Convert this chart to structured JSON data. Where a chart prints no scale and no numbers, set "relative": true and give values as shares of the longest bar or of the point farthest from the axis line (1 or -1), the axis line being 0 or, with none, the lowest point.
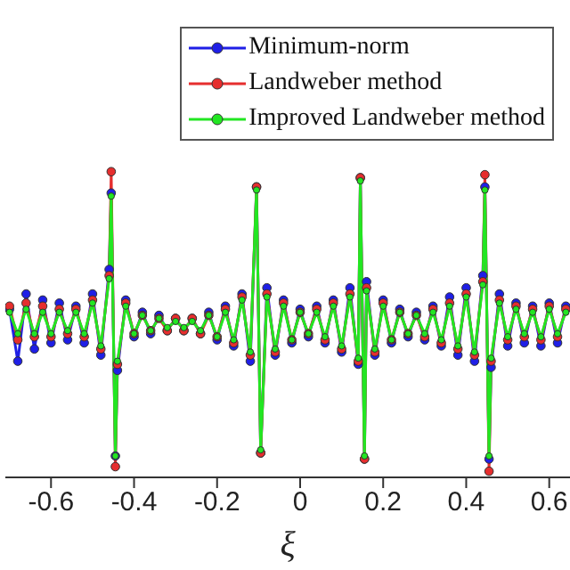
{
  "chart_data": {
    "type": "line",
    "relative": true,
    "xlabel": "ξ",
    "xlim": [
      -0.71,
      0.65
    ],
    "xticks": [
      -0.6,
      -0.4,
      -0.2,
      0,
      0.2,
      0.4,
      0.6
    ],
    "marker": "circle",
    "legend": "top right",
    "grid": false,
    "x": [
      -0.7,
      -0.68,
      -0.66,
      -0.64,
      -0.62,
      -0.6,
      -0.58,
      -0.56,
      -0.54,
      -0.52,
      -0.5,
      -0.48,
      -0.46,
      -0.455,
      -0.445,
      -0.44,
      -0.42,
      -0.4,
      -0.38,
      -0.36,
      -0.34,
      -0.32,
      -0.3,
      -0.28,
      -0.26,
      -0.24,
      -0.22,
      -0.2,
      -0.18,
      -0.16,
      -0.14,
      -0.12,
      -0.105,
      -0.095,
      -0.08,
      -0.06,
      -0.04,
      -0.02,
      0,
      0.02,
      0.04,
      0.06,
      0.08,
      0.1,
      0.12,
      0.14,
      0.145,
      0.155,
      0.16,
      0.18,
      0.2,
      0.22,
      0.24,
      0.26,
      0.28,
      0.3,
      0.32,
      0.34,
      0.36,
      0.38,
      0.4,
      0.42,
      0.44,
      0.445,
      0.455,
      0.46,
      0.48,
      0.5,
      0.52,
      0.54,
      0.56,
      0.58,
      0.6,
      0.62,
      0.64
    ],
    "series": [
      {
        "name": "Minimum-norm",
        "color": "#1f1fe6",
        "values": [
          0.55,
          0.38,
          0.6,
          0.42,
          0.58,
          0.44,
          0.57,
          0.45,
          0.56,
          0.44,
          0.6,
          0.4,
          0.68,
          0.93,
          0.07,
          0.35,
          0.58,
          0.46,
          0.54,
          0.47,
          0.53,
          0.48,
          0.52,
          0.48,
          0.52,
          0.47,
          0.54,
          0.45,
          0.56,
          0.43,
          0.6,
          0.38,
          0.95,
          0.08,
          0.62,
          0.4,
          0.58,
          0.44,
          0.55,
          0.46,
          0.56,
          0.44,
          0.58,
          0.41,
          0.62,
          0.37,
          0.98,
          0.06,
          0.64,
          0.4,
          0.58,
          0.44,
          0.55,
          0.46,
          0.54,
          0.45,
          0.56,
          0.43,
          0.59,
          0.4,
          0.62,
          0.38,
          0.66,
          0.95,
          0.06,
          0.36,
          0.6,
          0.43,
          0.57,
          0.44,
          0.56,
          0.43,
          0.57,
          0.44,
          0.56
        ]
      },
      {
        "name": "Landweber method",
        "color": "#e62e2e",
        "values": [
          0.56,
          0.45,
          0.57,
          0.46,
          0.56,
          0.46,
          0.55,
          0.47,
          0.55,
          0.46,
          0.58,
          0.42,
          0.66,
          1.0,
          0.035,
          0.37,
          0.57,
          0.47,
          0.53,
          0.48,
          0.52,
          0.48,
          0.52,
          0.48,
          0.52,
          0.47,
          0.53,
          0.46,
          0.55,
          0.44,
          0.59,
          0.4,
          0.95,
          0.08,
          0.6,
          0.41,
          0.57,
          0.45,
          0.54,
          0.47,
          0.55,
          0.45,
          0.57,
          0.42,
          0.6,
          0.38,
          0.98,
          0.06,
          0.62,
          0.41,
          0.57,
          0.45,
          0.54,
          0.47,
          0.53,
          0.46,
          0.55,
          0.44,
          0.57,
          0.42,
          0.6,
          0.4,
          0.64,
          0.99,
          0.02,
          0.38,
          0.58,
          0.45,
          0.56,
          0.46,
          0.55,
          0.45,
          0.56,
          0.46,
          0.55
        ]
      },
      {
        "name": "Improved Landweber method",
        "color": "#22e622",
        "values": [
          0.54,
          0.47,
          0.55,
          0.47,
          0.54,
          0.47,
          0.54,
          0.48,
          0.54,
          0.47,
          0.57,
          0.43,
          0.65,
          0.92,
          0.07,
          0.38,
          0.56,
          0.47,
          0.53,
          0.48,
          0.52,
          0.49,
          0.51,
          0.49,
          0.51,
          0.48,
          0.53,
          0.46,
          0.54,
          0.45,
          0.58,
          0.41,
          0.94,
          0.09,
          0.59,
          0.42,
          0.56,
          0.45,
          0.54,
          0.47,
          0.54,
          0.46,
          0.56,
          0.43,
          0.59,
          0.39,
          0.97,
          0.07,
          0.61,
          0.42,
          0.56,
          0.45,
          0.54,
          0.47,
          0.53,
          0.47,
          0.54,
          0.45,
          0.56,
          0.43,
          0.59,
          0.41,
          0.63,
          0.94,
          0.07,
          0.39,
          0.57,
          0.46,
          0.55,
          0.47,
          0.54,
          0.46,
          0.55,
          0.47,
          0.54
        ]
      }
    ]
  }
}
